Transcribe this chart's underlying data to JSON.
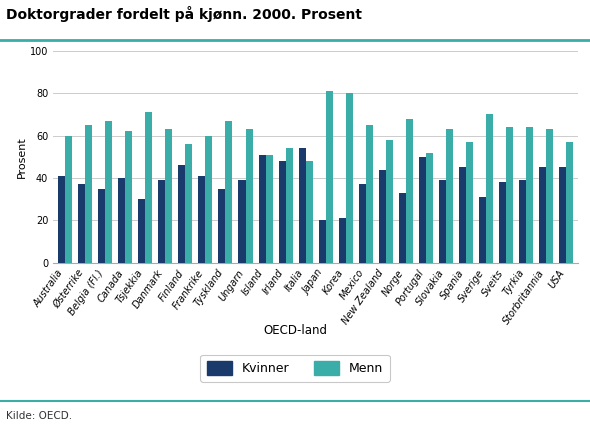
{
  "title": "Doktorgrader fordelt på kjønn. 2000. Prosent",
  "ylabel": "Prosent",
  "xlabel": "OECD-land",
  "source": "Kilde: OECD.",
  "ylim": [
    0,
    100
  ],
  "yticks": [
    0,
    20,
    40,
    60,
    80,
    100
  ],
  "countries": [
    "Australia",
    "Østerrike",
    "Belgia (Fl.)",
    "Canada",
    "Tsjekkia",
    "Danmark",
    "Finland",
    "Frankrike",
    "Tyskland",
    "Ungarn",
    "Island",
    "Irland",
    "Italia",
    "Japan",
    "Korea",
    "Mexico",
    "New Zealand",
    "Norge",
    "Portugal",
    "Slovakia",
    "Spania",
    "Sverige",
    "Sveits",
    "Tyrkia",
    "Storbritannia",
    "USA"
  ],
  "kvinner": [
    41,
    37,
    35,
    40,
    30,
    39,
    46,
    41,
    35,
    39,
    51,
    48,
    54,
    20,
    21,
    37,
    44,
    33,
    50,
    39,
    45,
    31,
    38,
    39,
    45,
    45
  ],
  "menn": [
    60,
    65,
    67,
    62,
    71,
    63,
    56,
    60,
    67,
    63,
    51,
    54,
    48,
    81,
    80,
    65,
    58,
    68,
    52,
    63,
    57,
    70,
    64,
    64,
    63,
    57
  ],
  "color_kvinner": "#1a3a6b",
  "color_menn": "#3aada8",
  "legend_kvinner": "Kvinner",
  "legend_menn": "Menn",
  "title_fontsize": 10,
  "tick_fontsize": 7,
  "ylabel_fontsize": 8,
  "xlabel_fontsize": 8.5,
  "source_fontsize": 7.5,
  "bar_width": 0.35,
  "grid_color": "#cccccc",
  "title_line_color": "#3aada8",
  "background_color": "#ffffff"
}
